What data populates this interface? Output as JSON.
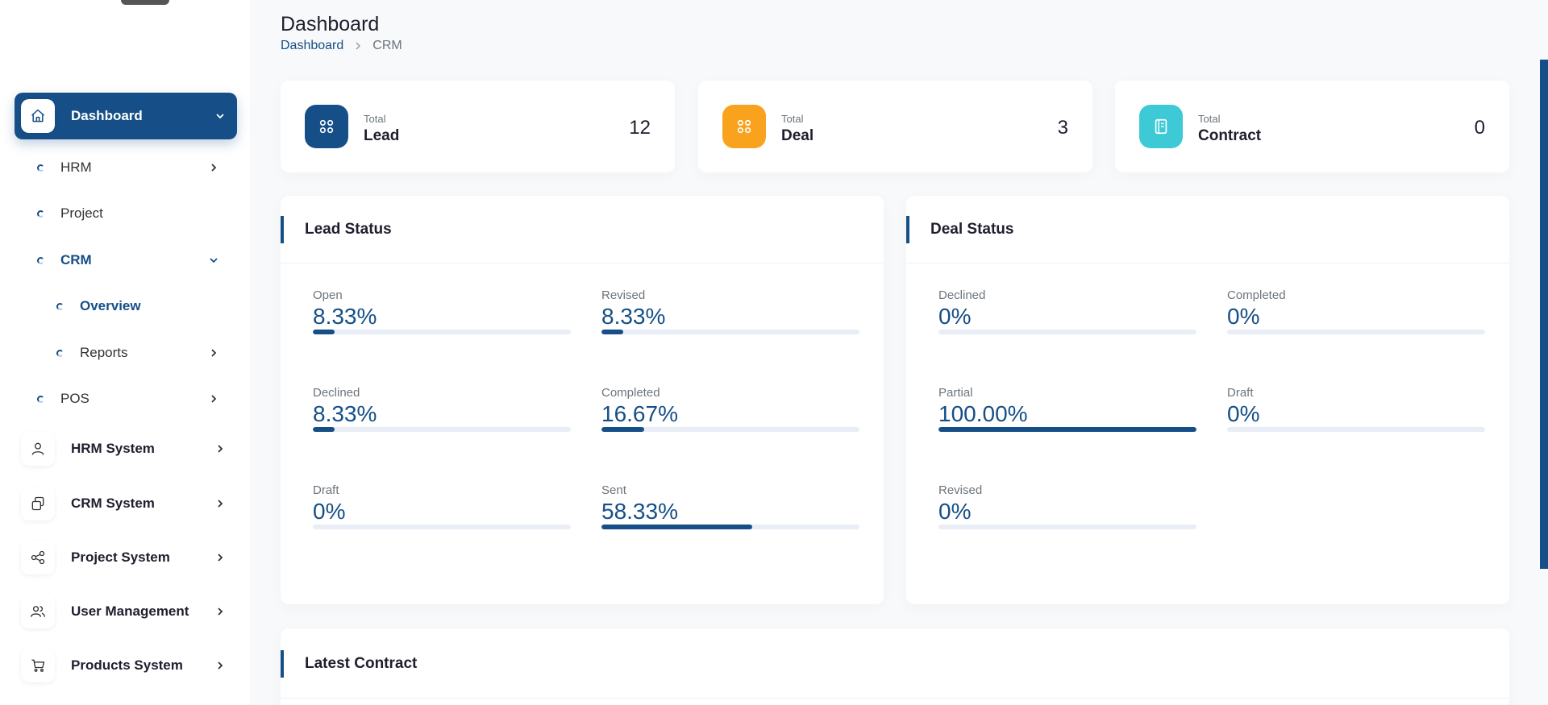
{
  "header": {
    "title": "Dashboard",
    "breadcrumb": [
      "Dashboard",
      "CRM"
    ]
  },
  "sidebar": {
    "dashboard": "Dashboard",
    "sub_items": [
      {
        "label": "HRM",
        "has_chevron": true
      },
      {
        "label": "Project",
        "has_chevron": false
      },
      {
        "label": "CRM",
        "expanded": true
      },
      {
        "label": "Overview",
        "active": true
      },
      {
        "label": "Reports",
        "has_chevron": true
      },
      {
        "label": "POS",
        "has_chevron": true
      }
    ],
    "modules": [
      {
        "label": "HRM System",
        "icon": "user-icon"
      },
      {
        "label": "CRM System",
        "icon": "layers-icon"
      },
      {
        "label": "Project System",
        "icon": "share-icon"
      },
      {
        "label": "User Management",
        "icon": "users-icon"
      },
      {
        "label": "Products System",
        "icon": "cart-icon"
      }
    ]
  },
  "stats": [
    {
      "small": "Total",
      "label": "Lead",
      "value": "12",
      "color": "#164f87",
      "icon": "grid-icon"
    },
    {
      "small": "Total",
      "label": "Deal",
      "value": "3",
      "color": "#f8a21e",
      "icon": "grid-icon"
    },
    {
      "small": "Total",
      "label": "Contract",
      "value": "0",
      "color": "#3ec9d6",
      "icon": "contract-icon"
    }
  ],
  "lead_status": {
    "title": "Lead Status",
    "items": [
      {
        "label": "Open",
        "value": "8.33%",
        "percent": 8.33
      },
      {
        "label": "Revised",
        "value": "8.33%",
        "percent": 8.33
      },
      {
        "label": "Declined",
        "value": "8.33%",
        "percent": 8.33
      },
      {
        "label": "Completed",
        "value": "16.67%",
        "percent": 16.67
      },
      {
        "label": "Draft",
        "value": "0%",
        "percent": 0
      },
      {
        "label": "Sent",
        "value": "58.33%",
        "percent": 58.33
      }
    ]
  },
  "deal_status": {
    "title": "Deal Status",
    "items": [
      {
        "label": "Declined",
        "value": "0%",
        "percent": 0
      },
      {
        "label": "Completed",
        "value": "0%",
        "percent": 0
      },
      {
        "label": "Partial",
        "value": "100.00%",
        "percent": 100
      },
      {
        "label": "Draft",
        "value": "0%",
        "percent": 0
      },
      {
        "label": "Revised",
        "value": "0%",
        "percent": 0
      }
    ]
  },
  "latest_contract": {
    "title": "Latest Contract"
  },
  "colors": {
    "accent": "#164f87",
    "deal": "#f8a21e",
    "contract": "#3ec9d6"
  }
}
